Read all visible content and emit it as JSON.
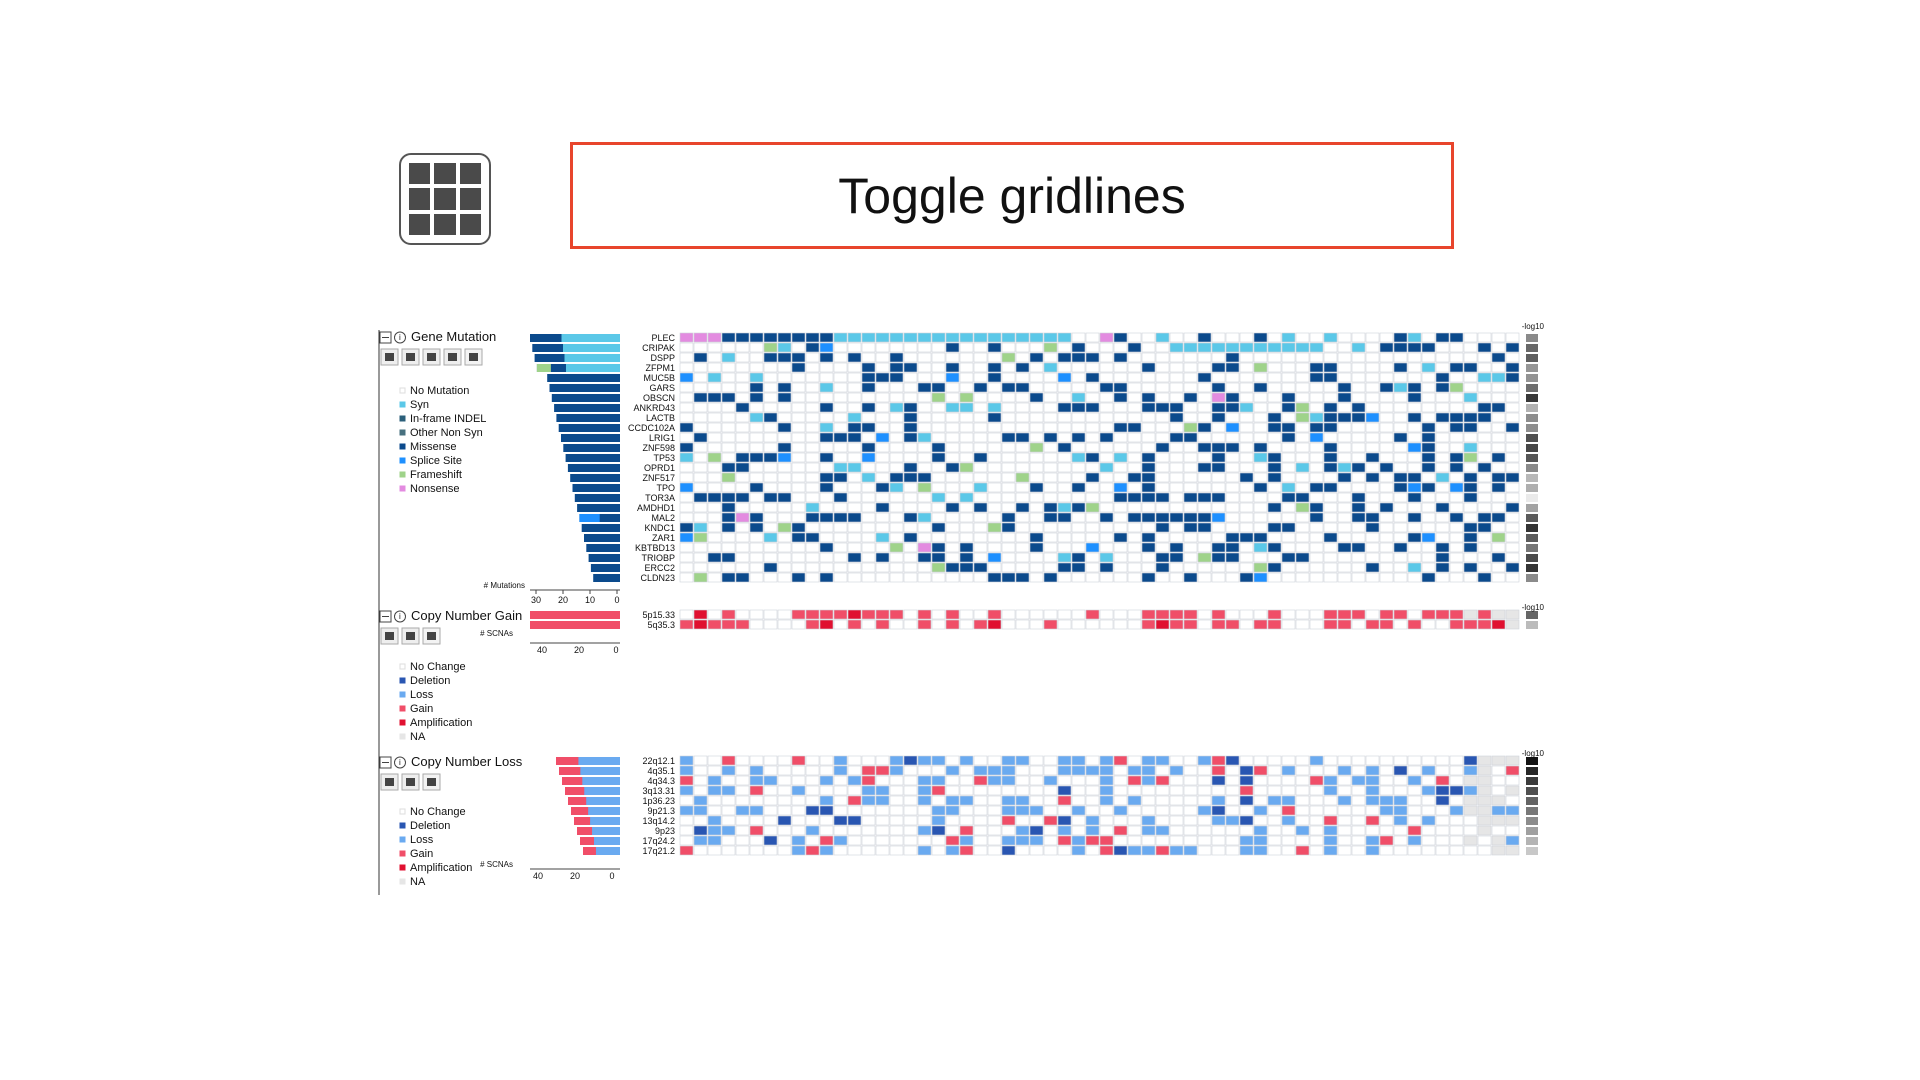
{
  "callout": {
    "label": "Toggle gridlines"
  },
  "colors": {
    "missense": "#0b4a8c",
    "syn": "#5bc8e8",
    "inframe": "#2b5f7a",
    "othernonsyn": "#47707f",
    "splice": "#1e90ff",
    "frameshift": "#9fd38a",
    "nonsense": "#e38be0",
    "nochange": "#ffffff",
    "deletion": "#2956b2",
    "loss": "#6aaaf0",
    "gain": "#f04e68",
    "amplification": "#e01030",
    "na": "#e6e6e6"
  },
  "mutation": {
    "title": "Gene Mutation",
    "legend": [
      "No Mutation",
      "Syn",
      "In-frame INDEL",
      "Other Non Syn",
      "Missense",
      "Splice Site",
      "Frameshift",
      "Nonsense"
    ],
    "legend_icons": [
      "blank-swatch-icon",
      "syn-swatch-icon",
      "inframe-swatch-icon",
      "othernonsyn-swatch-icon",
      "missense-swatch-icon",
      "splice-swatch-icon",
      "frameshift-swatch-icon",
      "nonsense-swatch-icon"
    ],
    "axis_title": "# Mutations",
    "axis_ticks": [
      "30",
      "20",
      "10",
      "0"
    ],
    "genes": [
      "PLEC",
      "CRIPAK",
      "DSPP",
      "ZFPM1",
      "MUC5B",
      "GARS",
      "OBSCN",
      "ANKRD43",
      "LACTB",
      "CCDC102A",
      "LRIG1",
      "ZNF598",
      "TP53",
      "OPRD1",
      "ZNF517",
      "TPO",
      "TOR3A",
      "AMDHD1",
      "MAL2",
      "KNDC1",
      "ZAR1",
      "KBTBD13",
      "TRIOBP",
      "ERCC2",
      "CLDN23"
    ],
    "score_label": "-log10"
  },
  "gain": {
    "title": "Copy Number Gain",
    "axis_title": "# SCNAs",
    "axis_ticks": [
      "40",
      "20",
      "0"
    ],
    "regions": [
      "5p15.33",
      "5q35.3"
    ],
    "legend": [
      "No Change",
      "Deletion",
      "Loss",
      "Gain",
      "Amplification",
      "NA"
    ],
    "score_label": "-log10"
  },
  "loss": {
    "title": "Copy Number Loss",
    "axis_title": "# SCNAs",
    "axis_ticks": [
      "40",
      "20",
      "0"
    ],
    "regions": [
      "22q12.1",
      "4q35.1",
      "4q34.3",
      "3q13.31",
      "1p36.23",
      "9p21.3",
      "13q14.2",
      "9p23",
      "17q24.2",
      "17q21.2"
    ],
    "legend": [
      "No Change",
      "Deletion",
      "Loss",
      "Gain",
      "Amplification",
      "NA"
    ],
    "score_label": "-log10"
  }
}
